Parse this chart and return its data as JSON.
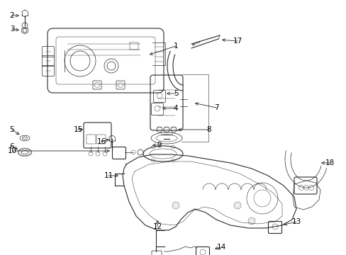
{
  "background_color": "#ffffff",
  "line_color": "#2a2a2a",
  "text_color": "#000000",
  "figure_width": 4.89,
  "figure_height": 3.6,
  "dpi": 100
}
